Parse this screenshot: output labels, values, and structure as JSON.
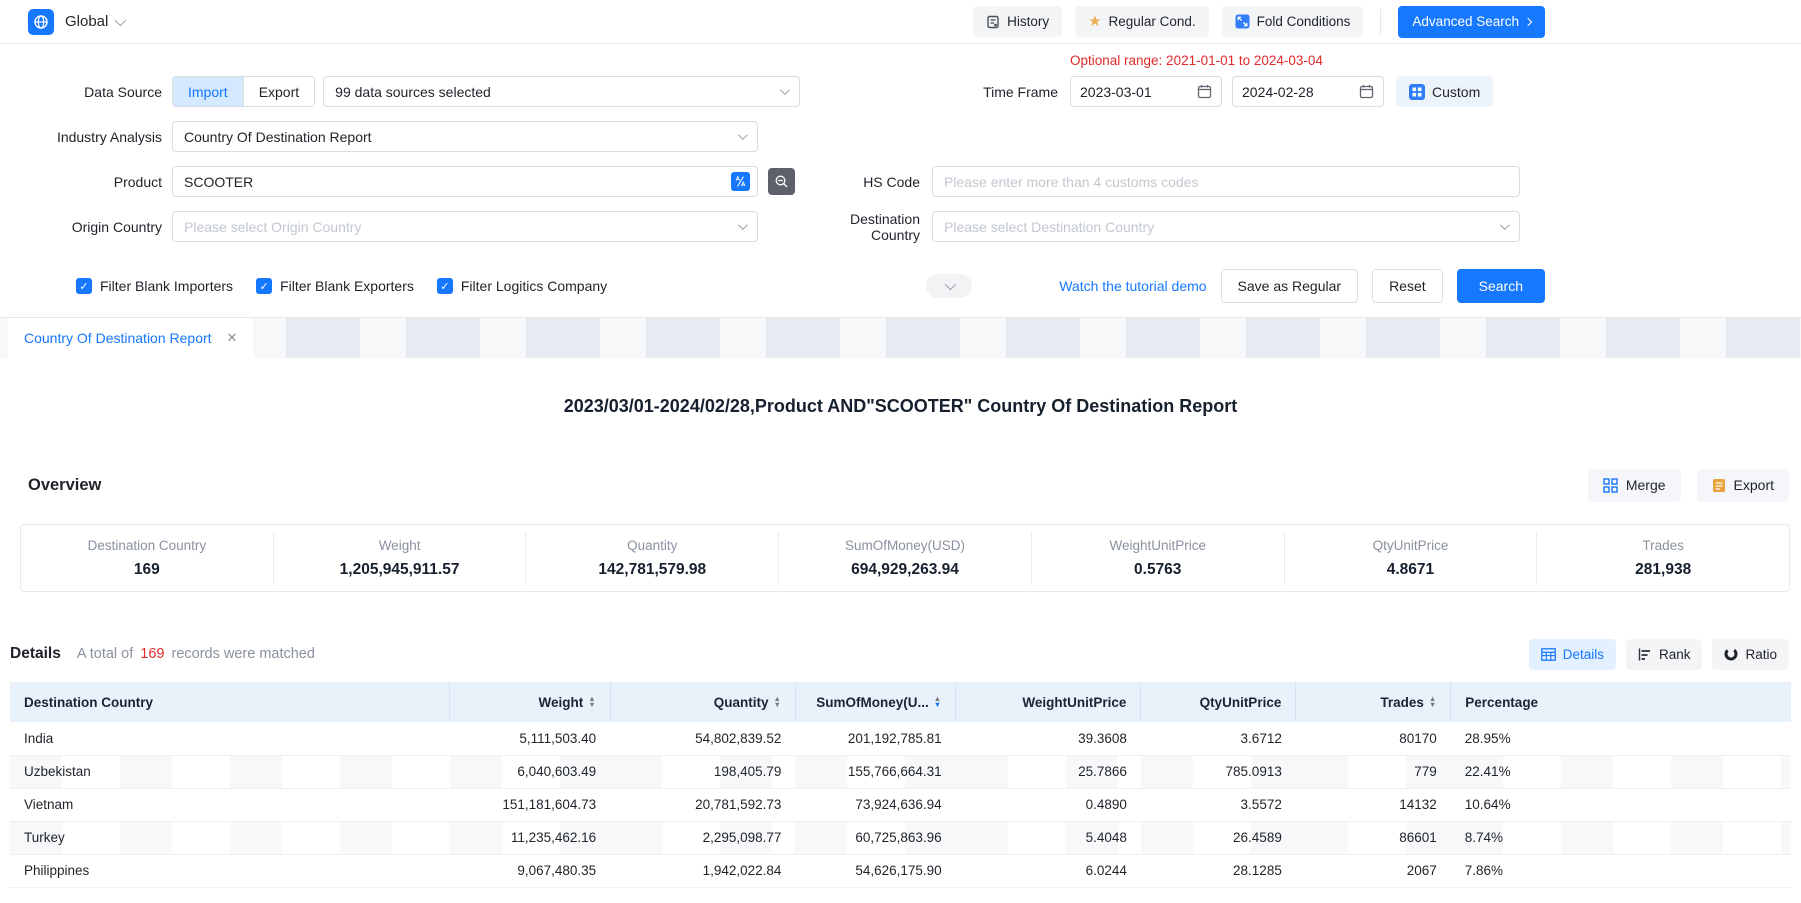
{
  "topbar": {
    "region": "Global",
    "history_label": "History",
    "regular_label": "Regular Cond.",
    "fold_label": "Fold Conditions",
    "advanced_label": "Advanced Search"
  },
  "form": {
    "data_source": {
      "label": "Data Source",
      "import_label": "Import",
      "export_label": "Export",
      "selected": "99 data sources selected"
    },
    "time_frame": {
      "label": "Time Frame",
      "optional_range": "Optional range:  2021-01-01 to 2024-03-04",
      "start": "2023-03-01",
      "end": "2024-02-28",
      "custom_label": "Custom"
    },
    "industry": {
      "label": "Industry Analysis",
      "value": "Country Of Destination Report"
    },
    "product": {
      "label": "Product",
      "value": "SCOOTER"
    },
    "hs_code": {
      "label": "HS Code",
      "placeholder": "Please enter more than 4 customs codes"
    },
    "origin": {
      "label": "Origin Country",
      "placeholder": "Please select Origin Country"
    },
    "destination": {
      "label": "Destination Country",
      "placeholder": "Please select Destination Country"
    },
    "checkboxes": [
      "Filter Blank Importers",
      "Filter Blank Exporters",
      "Filter Logitics Company"
    ],
    "tutorial_link": "Watch the tutorial demo",
    "save_regular_label": "Save as Regular",
    "reset_label": "Reset",
    "search_label": "Search"
  },
  "tab": {
    "label": "Country Of Destination Report"
  },
  "report": {
    "title": "2023/03/01-2024/02/28,Product AND\"SCOOTER\" Country Of Destination Report",
    "overview": {
      "heading": "Overview",
      "merge_label": "Merge",
      "export_label": "Export",
      "stats": [
        {
          "label": "Destination Country",
          "value": "169"
        },
        {
          "label": "Weight",
          "value": "1,205,945,911.57"
        },
        {
          "label": "Quantity",
          "value": "142,781,579.98"
        },
        {
          "label": "SumOfMoney(USD)",
          "value": "694,929,263.94"
        },
        {
          "label": "WeightUnitPrice",
          "value": "0.5763"
        },
        {
          "label": "QtyUnitPrice",
          "value": "4.8671"
        },
        {
          "label": "Trades",
          "value": "281,938"
        }
      ]
    },
    "details": {
      "heading": "Details",
      "total_prefix": "A total of",
      "total_count": "169",
      "total_suffix": "records were matched",
      "views": [
        "Details",
        "Rank",
        "Ratio"
      ]
    }
  },
  "table": {
    "columns": [
      {
        "label": "Destination Country",
        "align": "left",
        "sort": "none",
        "width": "24.7%"
      },
      {
        "label": "Weight",
        "align": "right",
        "sort": "both",
        "width": "9.0%"
      },
      {
        "label": "Quantity",
        "align": "right",
        "sort": "both",
        "width": "10.4%"
      },
      {
        "label": "SumOfMoney(U...",
        "align": "right",
        "sort": "desc",
        "width": "9.0%"
      },
      {
        "label": "WeightUnitPrice",
        "align": "right",
        "sort": "none",
        "width": "10.4%"
      },
      {
        "label": "QtyUnitPrice",
        "align": "right",
        "sort": "none",
        "width": "8.7%"
      },
      {
        "label": "Trades",
        "align": "right",
        "sort": "both",
        "width": "8.7%"
      },
      {
        "label": "Percentage",
        "align": "left",
        "sort": "none",
        "width": "19.1%"
      }
    ],
    "rows": [
      [
        "India",
        "5,111,503.40",
        "54,802,839.52",
        "201,192,785.81",
        "39.3608",
        "3.6712",
        "80170",
        "28.95%"
      ],
      [
        "Uzbekistan",
        "6,040,603.49",
        "198,405.79",
        "155,766,664.31",
        "25.7866",
        "785.0913",
        "779",
        "22.41%"
      ],
      [
        "Vietnam",
        "151,181,604.73",
        "20,781,592.73",
        "73,924,636.94",
        "0.4890",
        "3.5572",
        "14132",
        "10.64%"
      ],
      [
        "Turkey",
        "11,235,462.16",
        "2,295,098.77",
        "60,725,863.96",
        "5.4048",
        "26.4589",
        "86601",
        "8.74%"
      ],
      [
        "Philippines",
        "9,067,480.35",
        "1,942,022.84",
        "54,626,175.90",
        "6.0244",
        "28.1285",
        "2067",
        "7.86%"
      ]
    ]
  }
}
